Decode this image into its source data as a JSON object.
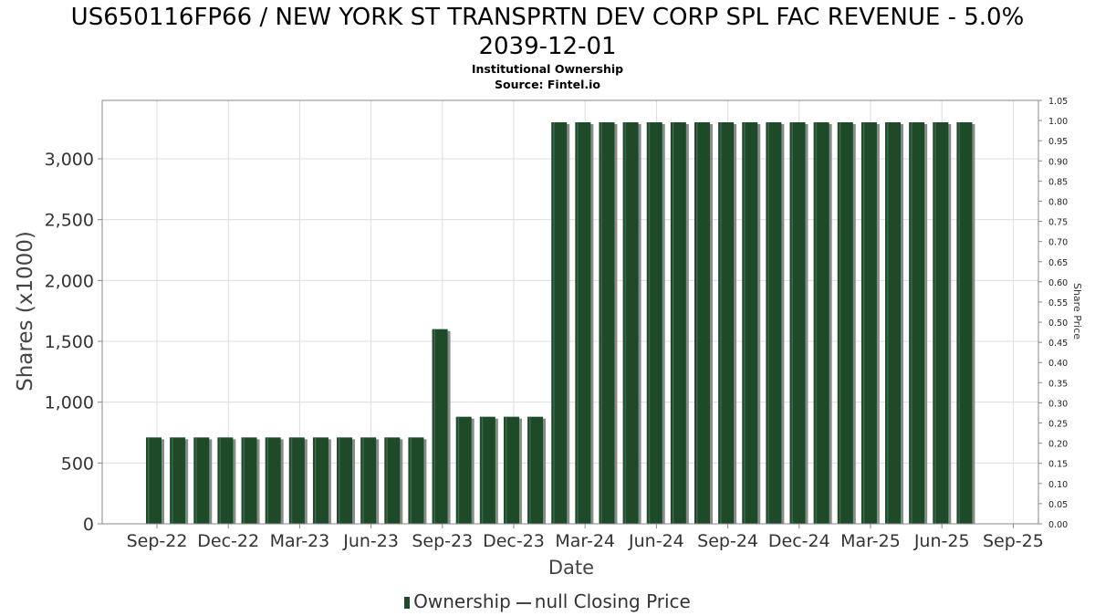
{
  "title_line1": "US650116FP66 / NEW YORK ST TRANSPRTN DEV CORP SPL FAC REVENUE - 5.0%",
  "title_line2": "2039-12-01",
  "subtitle_line1": "Institutional Ownership",
  "subtitle_line2": "Source: Fintel.io",
  "legend": {
    "ownership_label": "Ownership",
    "price_label": "null Closing Price"
  },
  "colors": {
    "bar": "#1e4a2a",
    "bar_shadow": "#8a8a8a",
    "grid": "#dddddd",
    "axis": "#888888"
  },
  "chart_data": {
    "type": "bar",
    "xlabel": "Date",
    "ylabel": "Shares (x1000)",
    "y2label": "Share Price",
    "ylim": [
      0,
      3480
    ],
    "y2lim": [
      0,
      1.05
    ],
    "yticks": [
      0,
      500,
      1000,
      1500,
      2000,
      2500,
      3000
    ],
    "ytick_labels": [
      "0",
      "500",
      "1,000",
      "1,500",
      "2,000",
      "2,500",
      "3,000"
    ],
    "y2ticks": [
      "0.00",
      "0.05",
      "0.10",
      "0.15",
      "0.20",
      "0.25",
      "0.30",
      "0.35",
      "0.40",
      "0.45",
      "0.50",
      "0.55",
      "0.60",
      "0.65",
      "0.70",
      "0.75",
      "0.80",
      "0.85",
      "0.90",
      "0.95",
      "1.00",
      "1.05"
    ],
    "xtick_labels": [
      "Sep-22",
      "Dec-22",
      "Mar-23",
      "Jun-23",
      "Sep-23",
      "Dec-23",
      "Mar-24",
      "Jun-24",
      "Sep-24",
      "Dec-24",
      "Mar-25",
      "Jun-25",
      "Sep-25"
    ],
    "grid": true,
    "legend_position": "bottom",
    "series": [
      {
        "name": "Ownership",
        "values": [
          710,
          710,
          710,
          710,
          710,
          710,
          710,
          710,
          710,
          710,
          710,
          710,
          1600,
          880,
          880,
          880,
          880,
          3300,
          3300,
          3300,
          3300,
          3300,
          3300,
          3300,
          3300,
          3300,
          3300,
          3300,
          3300,
          3300,
          3300,
          3300,
          3300,
          3300,
          3300
        ]
      }
    ]
  }
}
